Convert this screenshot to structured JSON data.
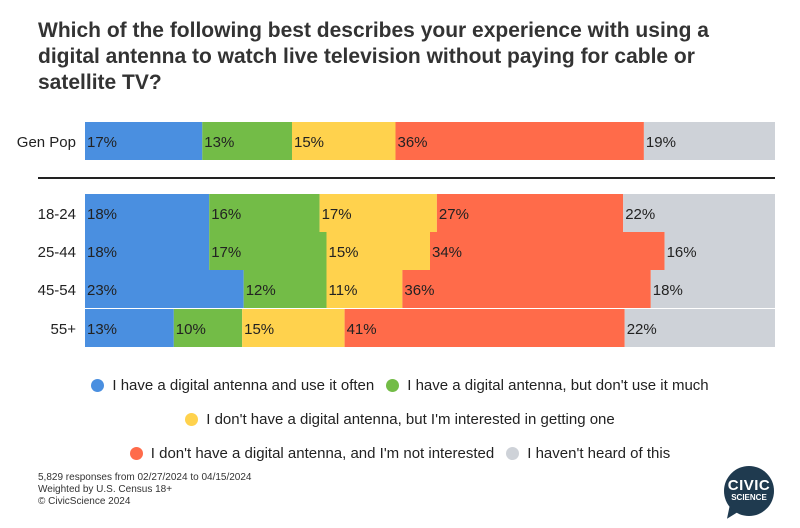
{
  "title": "Which of the following best describes your experience with using a digital antenna to watch live television without paying for cable or satellite TV?",
  "colors": {
    "use_often": "#4a8fe0",
    "dont_use_much": "#73bc47",
    "interested": "#ffd24d",
    "not_interested": "#ff6b4a",
    "havent_heard": "#ced2d8"
  },
  "chart_data": {
    "type": "bar",
    "orientation": "horizontal-stacked-100",
    "categories": [
      "Gen Pop",
      "18-24",
      "25-44",
      "45-54",
      "55+"
    ],
    "series": [
      {
        "name": "I have a digital antenna and use it often",
        "color_key": "use_often",
        "values": [
          17,
          18,
          18,
          23,
          13
        ]
      },
      {
        "name": "I have a digital antenna, but don't use it much",
        "color_key": "dont_use_much",
        "values": [
          13,
          16,
          17,
          12,
          10
        ]
      },
      {
        "name": "I don't have a digital antenna, but I'm interested in getting one",
        "color_key": "interested",
        "values": [
          15,
          17,
          15,
          11,
          15
        ]
      },
      {
        "name": "I don't have a digital antenna, and I'm not interested",
        "color_key": "not_interested",
        "values": [
          36,
          27,
          34,
          36,
          41
        ]
      },
      {
        "name": "I haven't heard of this",
        "color_key": "havent_heard",
        "values": [
          19,
          22,
          16,
          18,
          22
        ]
      }
    ],
    "value_suffix": "%",
    "separator_after": "Gen Pop",
    "legend_placement": "bottom"
  },
  "legend": {
    "use_often": "I have a digital antenna and use it often",
    "dont_use_much": "I have a digital antenna, but don't use it much",
    "interested": "I don't have a digital antenna, but I'm interested in getting one",
    "not_interested": "I don't have a digital antenna, and I'm not interested",
    "havent_heard": "I haven't heard of this"
  },
  "footnote": {
    "responses": "5,829 responses from 02/27/2024 to 04/15/2024",
    "weighting": "Weighted by U.S. Census 18+",
    "copyright": "© CivicScience 2024"
  },
  "logo": {
    "line1": "CIVIC",
    "line2": "SCIENCE"
  }
}
